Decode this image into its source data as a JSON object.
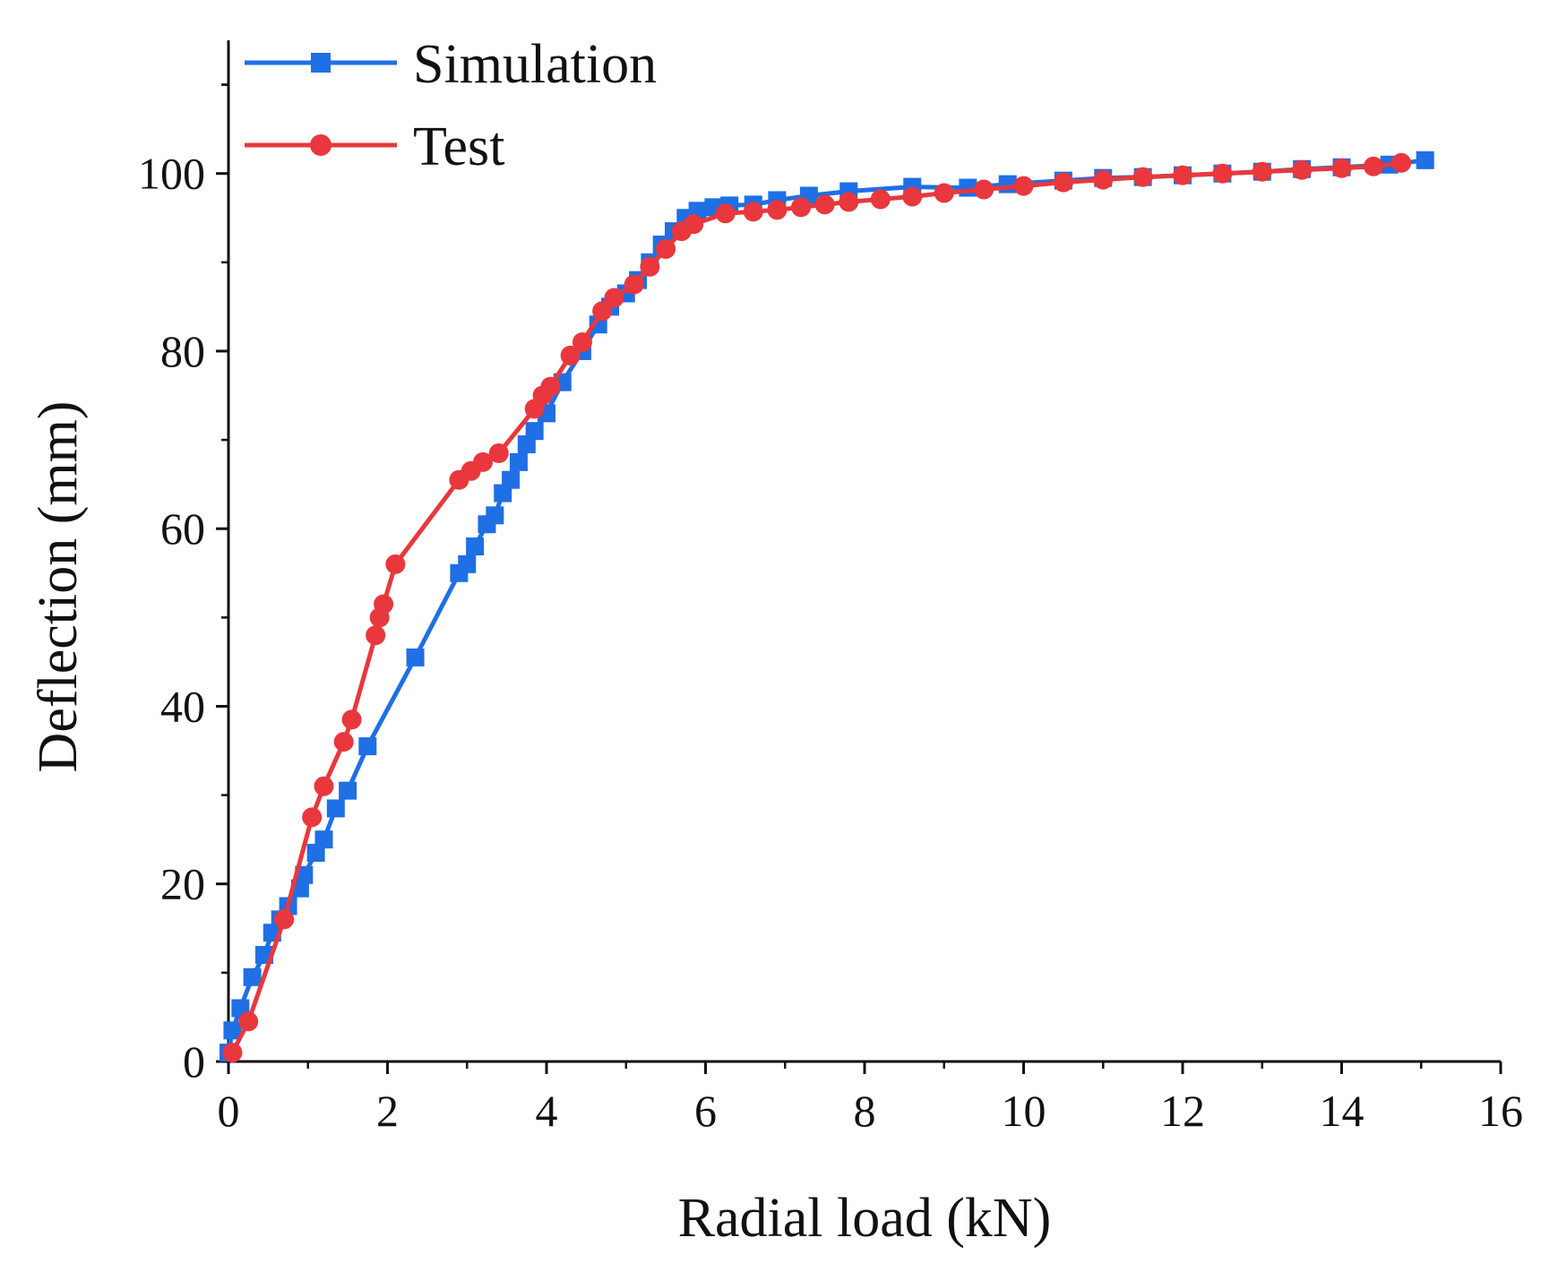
{
  "chart_data": {
    "type": "line",
    "xlabel": "Radial load (kN)",
    "ylabel": "Deflection (mm)",
    "xlim": [
      0,
      16
    ],
    "ylim": [
      0,
      115
    ],
    "xticks": [
      0,
      2,
      4,
      6,
      8,
      10,
      12,
      14,
      16
    ],
    "yticks": [
      0,
      20,
      40,
      60,
      80,
      100
    ],
    "grid": false,
    "legend_position": "top-left",
    "series": [
      {
        "name": "Simulation",
        "color": "#1f6fe5",
        "marker": "square",
        "points": [
          [
            0.0,
            1.0
          ],
          [
            0.05,
            3.5
          ],
          [
            0.15,
            6.0
          ],
          [
            0.3,
            9.5
          ],
          [
            0.45,
            12.0
          ],
          [
            0.55,
            14.5
          ],
          [
            0.65,
            16.0
          ],
          [
            0.75,
            17.5
          ],
          [
            0.9,
            19.5
          ],
          [
            0.95,
            21.0
          ],
          [
            1.1,
            23.5
          ],
          [
            1.2,
            25.0
          ],
          [
            1.35,
            28.5
          ],
          [
            1.5,
            30.5
          ],
          [
            1.75,
            35.5
          ],
          [
            2.35,
            45.5
          ],
          [
            2.9,
            55.0
          ],
          [
            3.0,
            56.0
          ],
          [
            3.1,
            58.0
          ],
          [
            3.25,
            60.5
          ],
          [
            3.35,
            61.5
          ],
          [
            3.45,
            64.0
          ],
          [
            3.55,
            65.5
          ],
          [
            3.65,
            67.5
          ],
          [
            3.75,
            69.5
          ],
          [
            3.85,
            71.0
          ],
          [
            4.0,
            73.0
          ],
          [
            4.2,
            76.5
          ],
          [
            4.45,
            80.0
          ],
          [
            4.65,
            83.0
          ],
          [
            4.8,
            85.0
          ],
          [
            5.0,
            86.5
          ],
          [
            5.15,
            88.0
          ],
          [
            5.3,
            90.0
          ],
          [
            5.45,
            92.0
          ],
          [
            5.6,
            93.5
          ],
          [
            5.75,
            95.0
          ],
          [
            5.9,
            95.8
          ],
          [
            6.1,
            96.2
          ],
          [
            6.3,
            96.4
          ],
          [
            6.6,
            96.5
          ],
          [
            6.9,
            97.0
          ],
          [
            7.3,
            97.5
          ],
          [
            7.8,
            98.0
          ],
          [
            8.6,
            98.5
          ],
          [
            9.3,
            98.4
          ],
          [
            9.8,
            98.8
          ],
          [
            10.5,
            99.2
          ],
          [
            11.0,
            99.5
          ],
          [
            11.5,
            99.6
          ],
          [
            12.0,
            99.8
          ],
          [
            12.5,
            100.0
          ],
          [
            13.0,
            100.2
          ],
          [
            13.5,
            100.5
          ],
          [
            14.0,
            100.7
          ],
          [
            14.6,
            101.0
          ],
          [
            15.05,
            101.5
          ]
        ]
      },
      {
        "name": "Test",
        "color": "#e8383d",
        "marker": "circle",
        "points": [
          [
            0.05,
            1.0
          ],
          [
            0.25,
            4.5
          ],
          [
            0.7,
            16.0
          ],
          [
            1.05,
            27.5
          ],
          [
            1.2,
            31.0
          ],
          [
            1.45,
            36.0
          ],
          [
            1.55,
            38.5
          ],
          [
            1.85,
            48.0
          ],
          [
            1.9,
            50.0
          ],
          [
            1.95,
            51.5
          ],
          [
            2.1,
            56.0
          ],
          [
            2.9,
            65.5
          ],
          [
            3.05,
            66.5
          ],
          [
            3.2,
            67.5
          ],
          [
            3.4,
            68.5
          ],
          [
            3.85,
            73.5
          ],
          [
            3.95,
            75.0
          ],
          [
            4.05,
            76.0
          ],
          [
            4.3,
            79.5
          ],
          [
            4.45,
            81.0
          ],
          [
            4.7,
            84.5
          ],
          [
            4.85,
            86.0
          ],
          [
            5.1,
            87.5
          ],
          [
            5.3,
            89.5
          ],
          [
            5.5,
            91.5
          ],
          [
            5.7,
            93.5
          ],
          [
            5.85,
            94.3
          ],
          [
            6.25,
            95.5
          ],
          [
            6.6,
            95.7
          ],
          [
            6.9,
            95.9
          ],
          [
            7.2,
            96.2
          ],
          [
            7.5,
            96.5
          ],
          [
            7.8,
            96.8
          ],
          [
            8.2,
            97.1
          ],
          [
            8.6,
            97.4
          ],
          [
            9.0,
            97.8
          ],
          [
            9.5,
            98.2
          ],
          [
            10.0,
            98.6
          ],
          [
            10.5,
            99.0
          ],
          [
            11.0,
            99.3
          ],
          [
            11.5,
            99.6
          ],
          [
            12.0,
            99.8
          ],
          [
            12.5,
            100.0
          ],
          [
            13.0,
            100.2
          ],
          [
            13.5,
            100.4
          ],
          [
            14.0,
            100.6
          ],
          [
            14.4,
            100.8
          ],
          [
            14.75,
            101.2
          ]
        ]
      }
    ]
  }
}
